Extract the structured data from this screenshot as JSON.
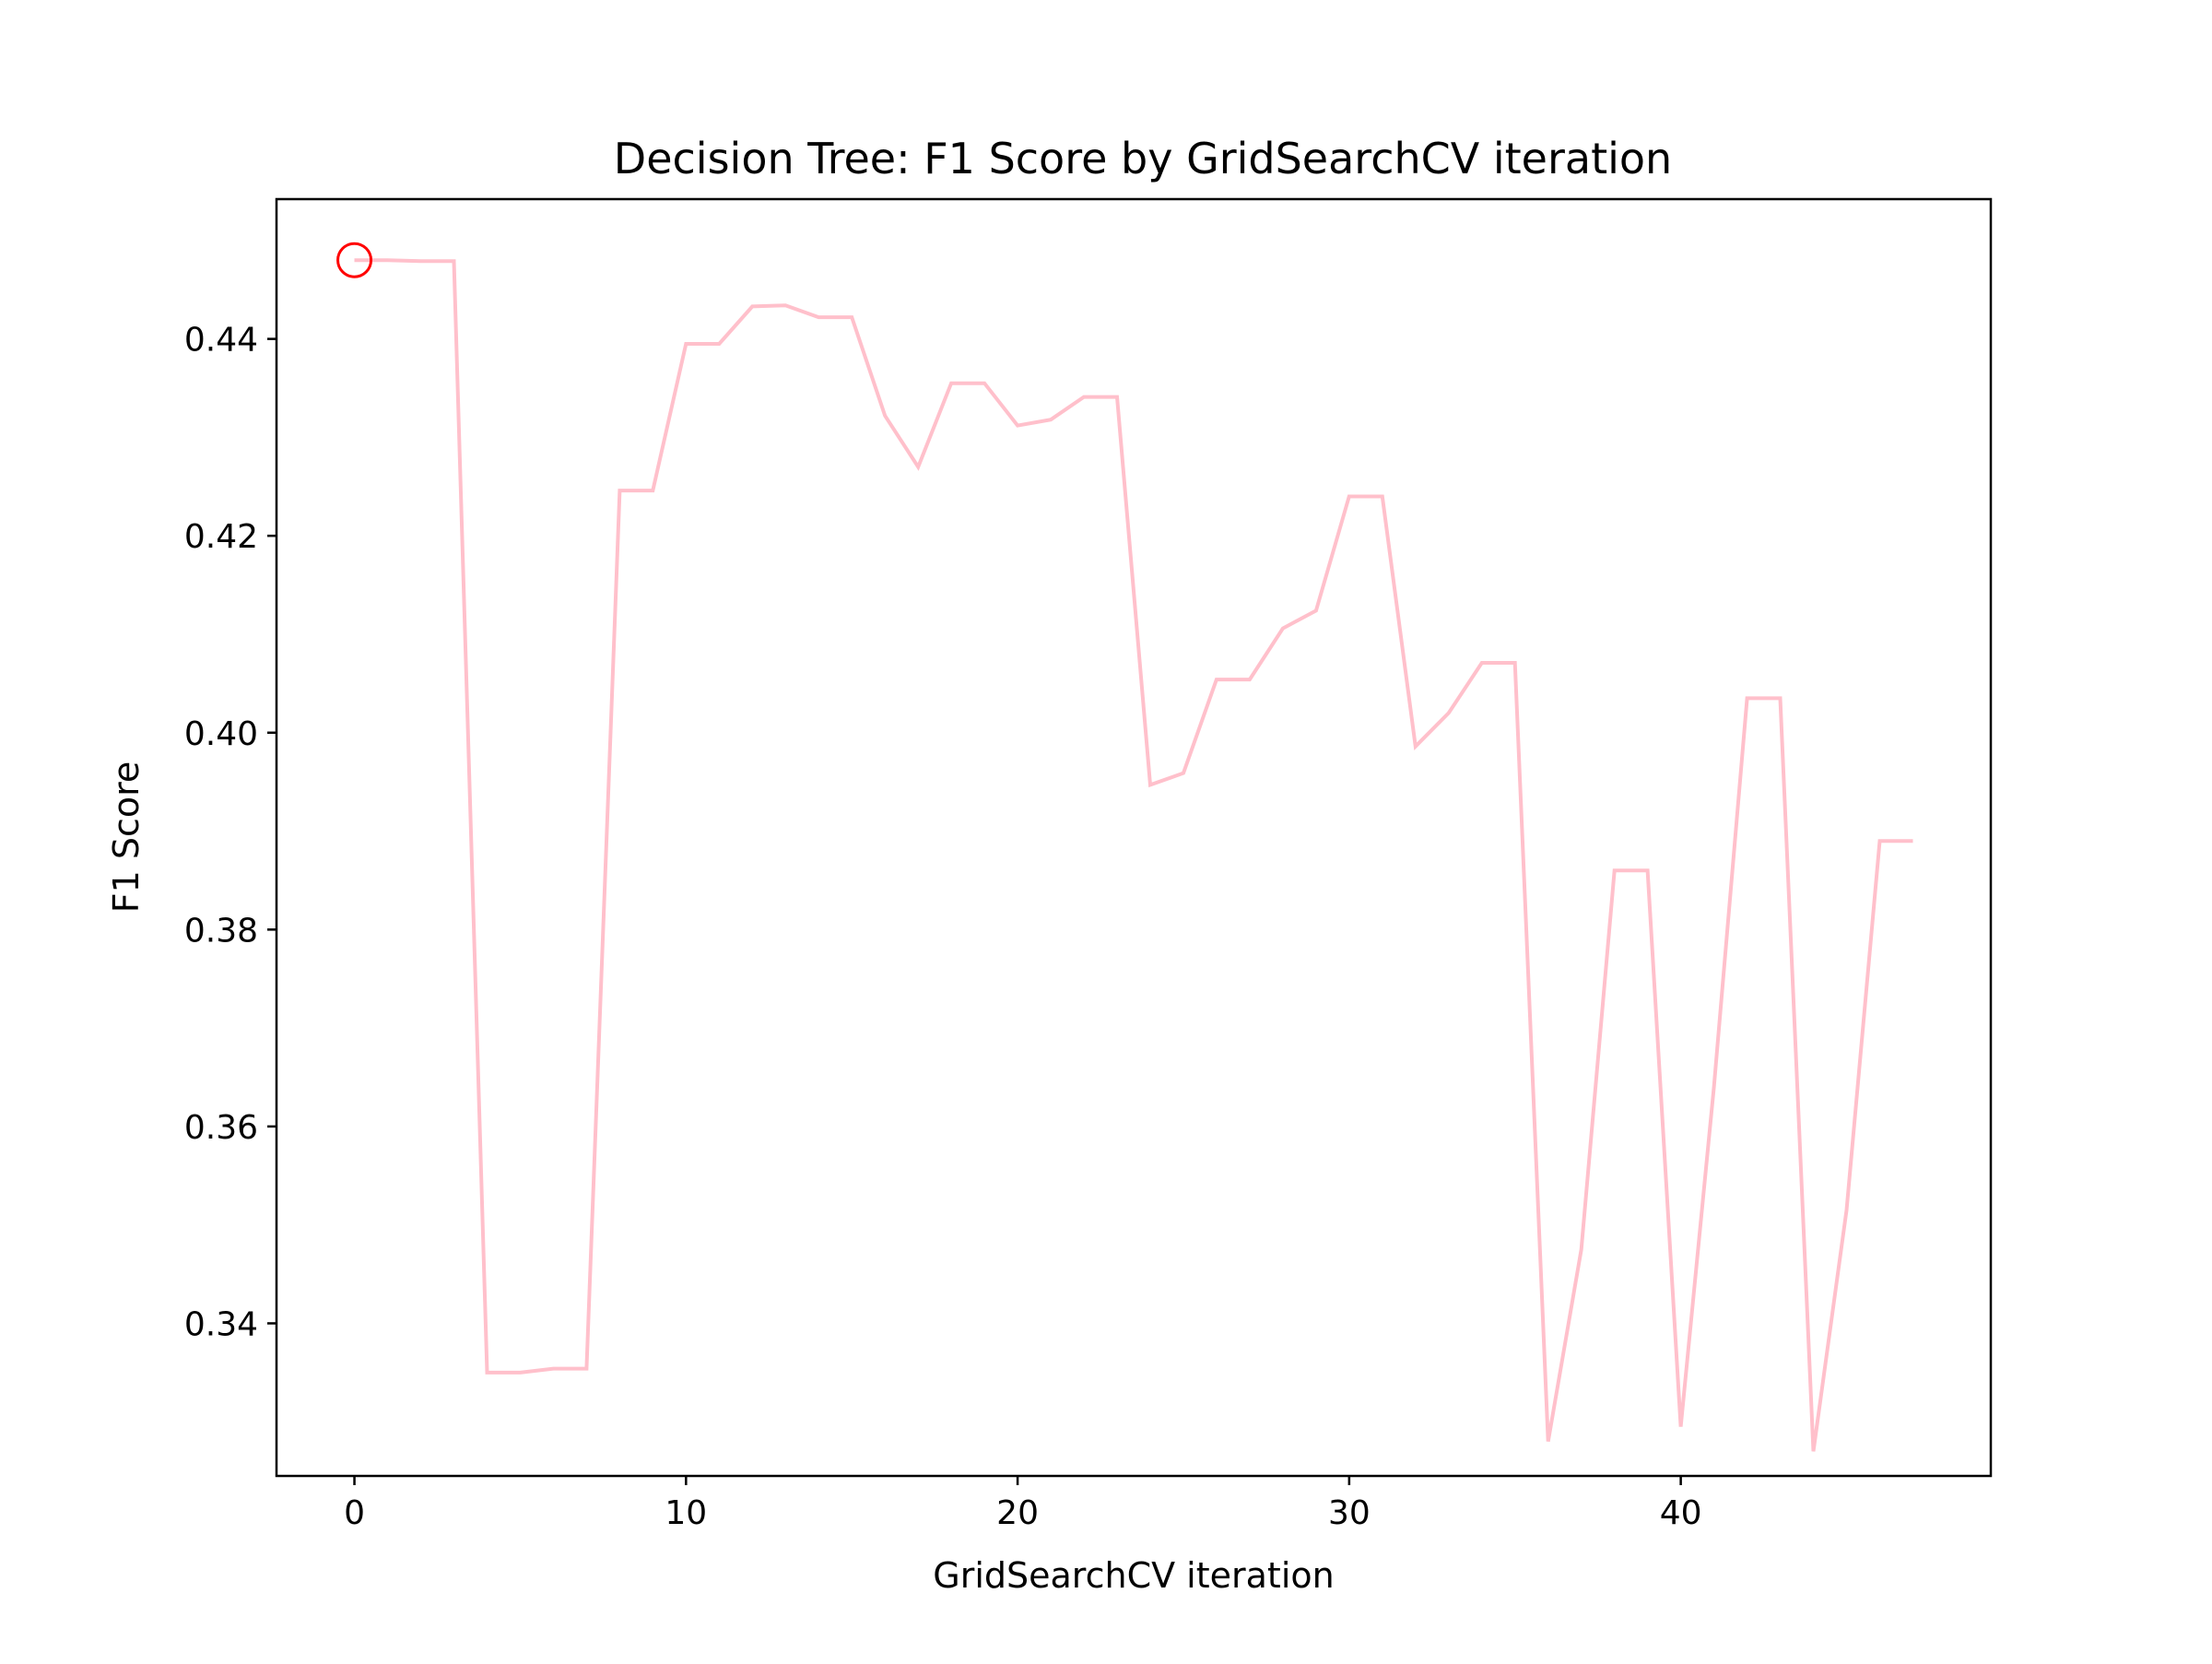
{
  "chart_data": {
    "type": "line",
    "title": "Decision Tree: F1 Score by GridSearchCV iteration",
    "xlabel": "GridSearchCV iteration",
    "ylabel": "F1 Score",
    "xlim": [
      -2.35,
      49.35
    ],
    "ylim": [
      0.3245,
      0.4542
    ],
    "xticks": [
      0,
      10,
      20,
      30,
      40
    ],
    "yticks": [
      0.34,
      0.36,
      0.38,
      0.4,
      0.42,
      0.44
    ],
    "ytick_labels": [
      "0.34",
      "0.36",
      "0.38",
      "0.40",
      "0.42",
      "0.44"
    ],
    "grid": false,
    "series": [
      {
        "color": "#ffc0cb",
        "x": [
          0,
          1,
          2,
          3,
          4,
          5,
          6,
          7,
          8,
          9,
          10,
          11,
          12,
          13,
          14,
          15,
          16,
          17,
          18,
          19,
          20,
          21,
          22,
          23,
          24,
          25,
          26,
          27,
          28,
          29,
          30,
          31,
          32,
          33,
          34,
          35,
          36,
          37,
          38,
          39,
          40,
          41,
          42,
          43,
          44,
          45,
          46,
          47
        ],
        "values": [
          0.448,
          0.448,
          0.4479,
          0.4479,
          0.335,
          0.335,
          0.3354,
          0.3354,
          0.4246,
          0.4246,
          0.4395,
          0.4395,
          0.4433,
          0.4434,
          0.4422,
          0.4422,
          0.4322,
          0.427,
          0.4355,
          0.4355,
          0.4312,
          0.4318,
          0.4341,
          0.4341,
          0.3947,
          0.3959,
          0.4054,
          0.4054,
          0.4106,
          0.4124,
          0.424,
          0.424,
          0.3986,
          0.402,
          0.4071,
          0.4071,
          0.328,
          0.3475,
          0.386,
          0.386,
          0.3295,
          0.364,
          0.4035,
          0.4035,
          0.327,
          0.3515,
          0.389,
          0.389
        ]
      }
    ],
    "highlight": {
      "x": 0,
      "y": 0.448,
      "marker": "open-circle",
      "color": "#ff0000"
    }
  }
}
